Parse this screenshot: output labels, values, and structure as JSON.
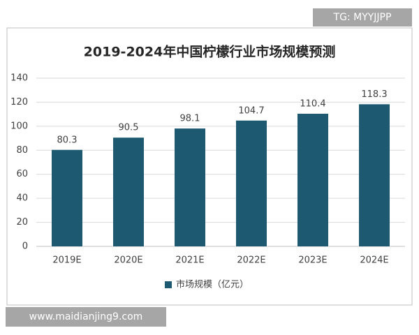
{
  "chart_data": {
    "type": "bar",
    "title": "2019-2024年中国柠檬行业市场规模预测",
    "categories": [
      "2019E",
      "2020E",
      "2021E",
      "2022E",
      "2023E",
      "2024E"
    ],
    "series": [
      {
        "name": "市场规模（亿元）",
        "color": "#1d5a72",
        "values": [
          80.3,
          90.5,
          98.1,
          104.7,
          110.4,
          118.3
        ]
      }
    ],
    "ylim": [
      0,
      140
    ],
    "yticks": [
      0,
      20,
      40,
      60,
      80,
      100,
      120,
      140
    ],
    "grid": true,
    "legend": "bottom"
  },
  "watermarks": [
    "TG: MYYJJPP",
    "www.maidianjing9.com"
  ]
}
